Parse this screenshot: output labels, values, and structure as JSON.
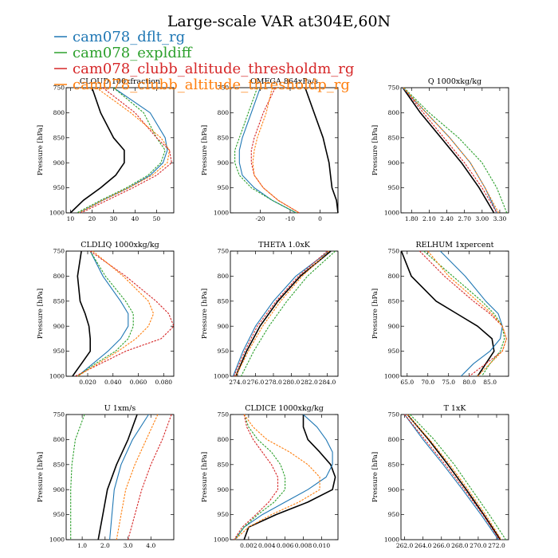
{
  "title": "Large-scale VAR at304E,60N",
  "series_colors": {
    "obs": "#000000",
    "cam078_dflt_rg": "#1f77b4",
    "cam078_expldiff": "#2ca02c",
    "cam078_clubb_altitude_thresholdm_rg": "#d62728",
    "cam078_clubb_altitude_thresholdp_rg": "#ff7f0e"
  },
  "legend": {
    "placement": "top-left",
    "entries": [
      {
        "label": "cam078_dflt_rg",
        "color": "#1f77b4"
      },
      {
        "label": "cam078_expldiff",
        "color": "#2ca02c"
      },
      {
        "label": "cam078_clubb_altitude_thresholdm_rg",
        "color": "#d62728"
      },
      {
        "label": "cam078_clubb_altitude_thresholdp_rg",
        "color": "#ff7f0e"
      }
    ]
  },
  "chart_data": [
    {
      "type": "line",
      "title": "CLOUD 100xfraction",
      "ylabel": "Pressure [hPa]",
      "ylim": [
        1000,
        750
      ],
      "yticks": [
        750,
        800,
        850,
        900,
        950,
        1000
      ],
      "xlim": [
        8,
        58
      ],
      "xticks": [
        10,
        20,
        30,
        40,
        50
      ],
      "xtick_labels": [
        "10",
        "20",
        "30",
        "40",
        "50"
      ],
      "y": [
        750,
        800,
        850,
        875,
        900,
        925,
        950,
        975,
        1000
      ],
      "series": [
        {
          "key": "obs",
          "x": [
            20,
            24,
            30,
            35,
            35,
            31,
            24,
            16,
            10
          ],
          "dashed": false
        },
        {
          "key": "cam078_dflt_rg",
          "x": [
            30,
            47,
            54,
            55,
            53,
            47,
            37,
            25,
            14
          ],
          "dashed": false
        },
        {
          "key": "cam078_expldiff",
          "x": [
            30,
            44,
            50,
            54,
            52,
            46,
            36,
            24,
            13
          ],
          "dashed": true
        },
        {
          "key": "cam078_clubb_altitude_thresholdm_rg",
          "x": [
            25,
            40,
            50,
            56,
            57,
            50,
            39,
            27,
            15
          ],
          "dashed": true
        },
        {
          "key": "cam078_clubb_altitude_thresholdp_rg",
          "x": [
            22,
            38,
            52,
            56,
            55,
            48,
            37,
            25,
            14
          ],
          "dashed": true
        }
      ]
    },
    {
      "type": "line",
      "title": "OMEGA 864xPa/s",
      "ylabel": "Pressure [hPa]",
      "ylim": [
        1000,
        750
      ],
      "yticks": [
        750,
        800,
        850,
        900,
        950,
        1000
      ],
      "xlim": [
        -30,
        6
      ],
      "xticks": [
        -20,
        -10,
        0
      ],
      "xtick_labels": [
        "-20",
        "-10",
        "0"
      ],
      "y": [
        750,
        800,
        850,
        875,
        900,
        925,
        950,
        975,
        1000
      ],
      "series": [
        {
          "key": "obs",
          "x": [
            -5,
            -2,
            1,
            2,
            3,
            3.5,
            4,
            5.5,
            6
          ],
          "dashed": false
        },
        {
          "key": "cam078_dflt_rg",
          "x": [
            -20,
            -23,
            -26,
            -27,
            -27,
            -26,
            -22,
            -16,
            -8
          ],
          "dashed": false
        },
        {
          "key": "cam078_expldiff",
          "x": [
            -21,
            -24,
            -27,
            -28.5,
            -28.5,
            -27,
            -23,
            -16,
            -8
          ],
          "dashed": true
        },
        {
          "key": "cam078_clubb_altitude_thresholdm_rg",
          "x": [
            -15,
            -19,
            -22,
            -23,
            -23,
            -22,
            -19,
            -14,
            -7
          ],
          "dashed": true
        },
        {
          "key": "cam078_clubb_altitude_thresholdp_rg",
          "x": [
            -16,
            -18,
            -21,
            -22,
            -22.5,
            -22,
            -19,
            -14,
            -7
          ],
          "dashed": true
        }
      ]
    },
    {
      "type": "line",
      "title": "Q 1000xkg/kg",
      "ylabel": "Pressure [hPa]",
      "ylim": [
        1000,
        750
      ],
      "yticks": [
        750,
        800,
        850,
        900,
        950,
        1000
      ],
      "xlim": [
        1.62,
        3.45
      ],
      "xticks": [
        1.8,
        2.1,
        2.4,
        2.7,
        3.0,
        3.3
      ],
      "xtick_labels": [
        "1.80",
        "2.10",
        "2.40",
        "2.70",
        "3.00",
        "3.30"
      ],
      "y": [
        750,
        800,
        850,
        900,
        950,
        1000
      ],
      "series": [
        {
          "key": "obs",
          "x": [
            1.65,
            1.95,
            2.3,
            2.65,
            2.95,
            3.2
          ],
          "dashed": false
        },
        {
          "key": "cam078_dflt_rg",
          "x": [
            1.65,
            2.05,
            2.45,
            2.8,
            3.05,
            3.25
          ],
          "dashed": false
        },
        {
          "key": "cam078_expldiff",
          "x": [
            1.67,
            2.1,
            2.6,
            3.0,
            3.25,
            3.42
          ],
          "dashed": true
        },
        {
          "key": "cam078_clubb_altitude_thresholdm_rg",
          "x": [
            1.66,
            2.0,
            2.35,
            2.7,
            3.0,
            3.25
          ],
          "dashed": true
        },
        {
          "key": "cam078_clubb_altitude_thresholdp_rg",
          "x": [
            1.66,
            2.05,
            2.45,
            2.8,
            3.05,
            3.28
          ],
          "dashed": true
        }
      ]
    },
    {
      "type": "line",
      "title": "CLDLIQ 1000xkg/kg",
      "ylabel": "Pressure [hPa]",
      "ylim": [
        1000,
        750
      ],
      "yticks": [
        750,
        800,
        850,
        900,
        950,
        1000
      ],
      "xlim": [
        0.003,
        0.088
      ],
      "xticks": [
        0.02,
        0.04,
        0.06,
        0.08
      ],
      "xtick_labels": [
        "0.020",
        "0.040",
        "0.060",
        "0.080"
      ],
      "y": [
        750,
        800,
        850,
        875,
        900,
        925,
        950,
        975,
        1000
      ],
      "series": [
        {
          "key": "obs",
          "x": [
            0.015,
            0.012,
            0.014,
            0.018,
            0.021,
            0.022,
            0.022,
            0.015,
            0.008
          ],
          "dashed": false
        },
        {
          "key": "cam078_dflt_rg",
          "x": [
            0.022,
            0.032,
            0.046,
            0.052,
            0.052,
            0.046,
            0.036,
            0.024,
            0.012
          ],
          "dashed": false
        },
        {
          "key": "cam078_expldiff",
          "x": [
            0.022,
            0.034,
            0.05,
            0.056,
            0.056,
            0.052,
            0.042,
            0.026,
            0.012
          ],
          "dashed": true
        },
        {
          "key": "cam078_clubb_altitude_thresholdm_rg",
          "x": [
            0.022,
            0.05,
            0.074,
            0.084,
            0.088,
            0.078,
            0.05,
            0.03,
            0.01
          ],
          "dashed": true
        },
        {
          "key": "cam078_clubb_altitude_thresholdp_rg",
          "x": [
            0.024,
            0.048,
            0.068,
            0.072,
            0.068,
            0.058,
            0.044,
            0.028,
            0.012
          ],
          "dashed": true
        }
      ]
    },
    {
      "type": "line",
      "title": "THETA 1.0xK",
      "ylabel": "Pressure [hPa]",
      "ylim": [
        1000,
        750
      ],
      "yticks": [
        750,
        800,
        850,
        900,
        950,
        1000
      ],
      "xlim": [
        273.2,
        285.2
      ],
      "xticks": [
        274,
        276,
        278,
        280,
        282,
        284
      ],
      "xtick_labels": [
        "274.0",
        "276.0",
        "278.0",
        "280.0",
        "282.0",
        "284.0"
      ],
      "y": [
        750,
        800,
        850,
        900,
        950,
        1000
      ],
      "series": [
        {
          "key": "obs",
          "x": [
            284.4,
            281.0,
            278.5,
            276.5,
            275.0,
            273.8
          ],
          "dashed": false
        },
        {
          "key": "cam078_dflt_rg",
          "x": [
            284.2,
            280.5,
            278.0,
            276.0,
            274.6,
            273.5
          ],
          "dashed": false
        },
        {
          "key": "cam078_expldiff",
          "x": [
            284.9,
            281.8,
            279.5,
            277.5,
            275.8,
            274.4
          ],
          "dashed": true
        },
        {
          "key": "cam078_clubb_altitude_thresholdm_rg",
          "x": [
            284.0,
            280.8,
            278.3,
            276.2,
            274.8,
            273.6
          ],
          "dashed": true
        },
        {
          "key": "cam078_clubb_altitude_thresholdp_rg",
          "x": [
            284.2,
            281.2,
            278.8,
            276.8,
            275.2,
            273.8
          ],
          "dashed": true
        }
      ]
    },
    {
      "type": "line",
      "title": "RELHUM 1xpercent",
      "ylabel": "Pressure [hPa]",
      "ylim": [
        1000,
        750
      ],
      "yticks": [
        750,
        800,
        850,
        900,
        950,
        1000
      ],
      "xlim": [
        63.5,
        89.5
      ],
      "xticks": [
        65,
        70,
        75,
        80,
        85
      ],
      "xtick_labels": [
        "65.0",
        "70.0",
        "75.0",
        "80.0",
        "85.0"
      ],
      "y": [
        750,
        800,
        850,
        875,
        900,
        925,
        950,
        975,
        1000
      ],
      "series": [
        {
          "key": "obs",
          "x": [
            63.6,
            66.0,
            72.0,
            77.0,
            82.0,
            85.5,
            86.0,
            84.0,
            82.0
          ],
          "dashed": false
        },
        {
          "key": "cam078_dflt_rg",
          "x": [
            73.0,
            79.0,
            84.0,
            87.0,
            88.0,
            87.5,
            85.0,
            81.0,
            78.0
          ],
          "dashed": false
        },
        {
          "key": "cam078_expldiff",
          "x": [
            69.0,
            76.0,
            83.0,
            86.0,
            88.0,
            88.5,
            87.5,
            85.0,
            83.0
          ],
          "dashed": true
        },
        {
          "key": "cam078_clubb_altitude_thresholdm_rg",
          "x": [
            68.0,
            74.0,
            81.0,
            85.0,
            88.0,
            89.0,
            88.0,
            84.0,
            80.0
          ],
          "dashed": true
        },
        {
          "key": "cam078_clubb_altitude_thresholdp_rg",
          "x": [
            70.0,
            75.0,
            82.0,
            85.5,
            88.0,
            89.0,
            88.0,
            85.0,
            82.0
          ],
          "dashed": true
        }
      ]
    },
    {
      "type": "line",
      "title": "U 1xm/s",
      "ylabel": "Pressure [hPa]",
      "ylim": [
        1000,
        750
      ],
      "yticks": [
        750,
        800,
        850,
        900,
        950,
        1000
      ],
      "xlim": [
        0.3,
        5.0
      ],
      "xticks": [
        1,
        2,
        3,
        4
      ],
      "xtick_labels": [
        "1.0",
        "2.0",
        "3.0",
        "4.0"
      ],
      "y": [
        750,
        800,
        850,
        900,
        950,
        1000
      ],
      "series": [
        {
          "key": "obs",
          "x": [
            3.4,
            3.0,
            2.5,
            2.1,
            1.9,
            1.7
          ],
          "dashed": false
        },
        {
          "key": "cam078_dflt_rg",
          "x": [
            3.9,
            3.2,
            2.7,
            2.4,
            2.3,
            2.2
          ],
          "dashed": false
        },
        {
          "key": "cam078_expldiff",
          "x": [
            1.1,
            0.7,
            0.55,
            0.5,
            0.5,
            0.5
          ],
          "dashed": true
        },
        {
          "key": "cam078_clubb_altitude_thresholdm_rg",
          "x": [
            4.9,
            4.5,
            4.0,
            3.6,
            3.3,
            3.0
          ],
          "dashed": true
        },
        {
          "key": "cam078_clubb_altitude_thresholdp_rg",
          "x": [
            4.3,
            3.8,
            3.3,
            2.9,
            2.7,
            2.5
          ],
          "dashed": true
        }
      ]
    },
    {
      "type": "line",
      "title": "CLDICE 1000xkg/kg",
      "ylabel": "Pressure [hPa]",
      "ylim": [
        1000,
        750
      ],
      "yticks": [
        750,
        800,
        850,
        900,
        950,
        1000
      ],
      "xlim": [
        0.0,
        0.0118
      ],
      "xticks": [
        0.002,
        0.004,
        0.006,
        0.008,
        0.01
      ],
      "xtick_labels": [
        "0.002",
        "0.004",
        "0.006",
        "0.008",
        "0.010"
      ],
      "y": [
        750,
        775,
        800,
        825,
        850,
        875,
        900,
        925,
        950,
        975,
        1000
      ],
      "series": [
        {
          "key": "obs",
          "x": [
            0.008,
            0.008,
            0.0085,
            0.0098,
            0.011,
            0.0115,
            0.0112,
            0.0085,
            0.005,
            0.002,
            0.0015
          ],
          "dashed": false
        },
        {
          "key": "cam078_dflt_rg",
          "x": [
            0.008,
            0.0095,
            0.0105,
            0.0112,
            0.0112,
            0.0105,
            0.0085,
            0.006,
            0.0035,
            0.0015,
            0.0005
          ],
          "dashed": false
        },
        {
          "key": "cam078_expldiff",
          "x": [
            0.0015,
            0.002,
            0.003,
            0.0045,
            0.0055,
            0.006,
            0.006,
            0.0048,
            0.003,
            0.0015,
            0.0005
          ],
          "dashed": true
        },
        {
          "key": "cam078_clubb_altitude_thresholdm_rg",
          "x": [
            0.0015,
            0.0018,
            0.0025,
            0.0035,
            0.0045,
            0.0052,
            0.0052,
            0.0042,
            0.0028,
            0.0013,
            0.0004
          ],
          "dashed": true
        },
        {
          "key": "cam078_clubb_altitude_thresholdp_rg",
          "x": [
            0.0015,
            0.0025,
            0.004,
            0.0065,
            0.0085,
            0.0098,
            0.0098,
            0.0075,
            0.0045,
            0.002,
            0.0005
          ],
          "dashed": true
        }
      ]
    },
    {
      "type": "line",
      "title": "T 1xK",
      "ylabel": "Pressure [hPa]",
      "ylim": [
        1000,
        750
      ],
      "yticks": [
        750,
        800,
        850,
        900,
        950,
        1000
      ],
      "xlim": [
        261.6,
        273.3
      ],
      "xticks": [
        262,
        264,
        266,
        268,
        270,
        272
      ],
      "xtick_labels": [
        "262.0",
        "264.0",
        "266.0",
        "268.0",
        "270.0",
        "272.0"
      ],
      "y": [
        750,
        800,
        850,
        900,
        950,
        1000
      ],
      "series": [
        {
          "key": "obs",
          "x": [
            262.3,
            264.6,
            266.7,
            268.7,
            270.6,
            272.4
          ],
          "dashed": false
        },
        {
          "key": "cam078_dflt_rg",
          "x": [
            262.0,
            264.0,
            266.2,
            268.3,
            270.3,
            272.2
          ],
          "dashed": false
        },
        {
          "key": "cam078_expldiff",
          "x": [
            262.6,
            265.2,
            267.4,
            269.3,
            271.2,
            273.0
          ],
          "dashed": true
        },
        {
          "key": "cam078_clubb_altitude_thresholdm_rg",
          "x": [
            262.0,
            264.2,
            266.4,
            268.5,
            270.5,
            272.3
          ],
          "dashed": true
        },
        {
          "key": "cam078_clubb_altitude_thresholdp_rg",
          "x": [
            262.3,
            264.7,
            266.9,
            268.9,
            270.8,
            272.5
          ],
          "dashed": true
        }
      ]
    }
  ]
}
